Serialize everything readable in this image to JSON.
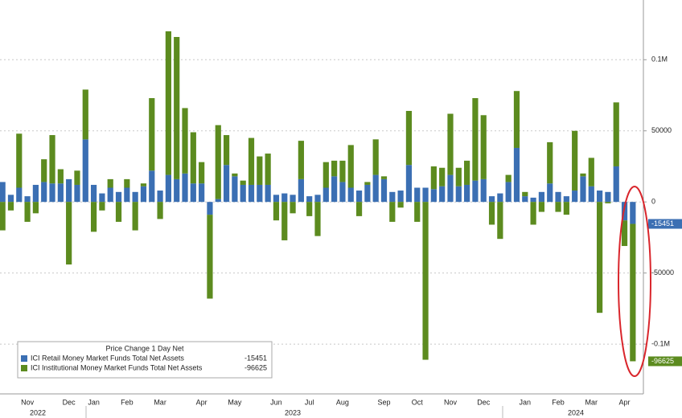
{
  "chart_data": {
    "type": "stacked_bar",
    "categories": [
      null,
      null,
      null,
      "Nov",
      null,
      null,
      null,
      null,
      "Dec",
      null,
      null,
      "Jan",
      null,
      null,
      null,
      "Feb",
      null,
      null,
      null,
      "Mar",
      null,
      null,
      null,
      null,
      "Apr",
      null,
      null,
      null,
      "May",
      null,
      null,
      null,
      null,
      "Jun",
      null,
      null,
      null,
      "Jul",
      null,
      null,
      null,
      "Aug",
      null,
      null,
      null,
      null,
      "Sep",
      null,
      null,
      null,
      "Oct",
      null,
      null,
      null,
      "Nov",
      null,
      null,
      null,
      "Dec",
      null,
      null,
      null,
      null,
      "Jan",
      null,
      null,
      null,
      "Feb",
      null,
      null,
      null,
      "Mar",
      null,
      null,
      null,
      "Apr",
      null
    ],
    "years": [
      "2022",
      "2023",
      "2024"
    ],
    "series": [
      {
        "name": "ICI Retail Money Market Funds Total Net Assets",
        "color": "#3b6fb3",
        "values": [
          14000,
          5000,
          10000,
          4000,
          12000,
          14000,
          13000,
          13000,
          16000,
          12000,
          44000,
          12000,
          6000,
          10000,
          7000,
          10000,
          7000,
          11000,
          22000,
          8000,
          19000,
          16000,
          20000,
          13000,
          13000,
          -9000,
          2000,
          26000,
          18000,
          12000,
          12000,
          12000,
          12000,
          5000,
          6000,
          5000,
          16000,
          4000,
          5000,
          10000,
          18000,
          14000,
          10000,
          8000,
          12000,
          19000,
          16000,
          7000,
          8000,
          26000,
          10000,
          10000,
          9000,
          11000,
          19000,
          11000,
          12000,
          15000,
          16000,
          4000,
          6000,
          14000,
          38000,
          4000,
          3000,
          7000,
          13000,
          7000,
          4000,
          8000,
          18000,
          11000,
          8000,
          7000,
          25000,
          -13000,
          -15451
        ]
      },
      {
        "name": "ICI Institutional Money Market Funds Total Net Assets",
        "color": "#5c8b1f",
        "values": [
          -20000,
          -6000,
          38000,
          -14000,
          -8000,
          16000,
          34000,
          10000,
          -44000,
          10000,
          35000,
          -21000,
          -6000,
          6000,
          -14000,
          6000,
          -20000,
          2000,
          51000,
          -12000,
          101000,
          100000,
          46000,
          36000,
          15000,
          -59000,
          52000,
          21000,
          2000,
          3000,
          33000,
          20000,
          22000,
          -13000,
          -27000,
          -8000,
          27000,
          -10000,
          -24000,
          18000,
          11000,
          15000,
          30000,
          -10000,
          2000,
          25000,
          2000,
          -14000,
          -4000,
          38000,
          -14000,
          -111000,
          16000,
          13000,
          43000,
          13000,
          17000,
          58000,
          45000,
          -16000,
          -26000,
          5000,
          40000,
          3000,
          -16000,
          -7000,
          29000,
          -7000,
          -9000,
          42000,
          2000,
          20000,
          -78000,
          -1000,
          45000,
          -18000,
          -96625
        ]
      }
    ],
    "legend_title": "Price Change 1 Day Net",
    "legend": "lower left",
    "ylim": [
      -135000,
      142000
    ],
    "yticks": [
      {
        "value": 100000,
        "label": "0.1M"
      },
      50000,
      0,
      -50000,
      {
        "value": -100000,
        "label": "-0.1M"
      }
    ],
    "grid": true
  }
}
